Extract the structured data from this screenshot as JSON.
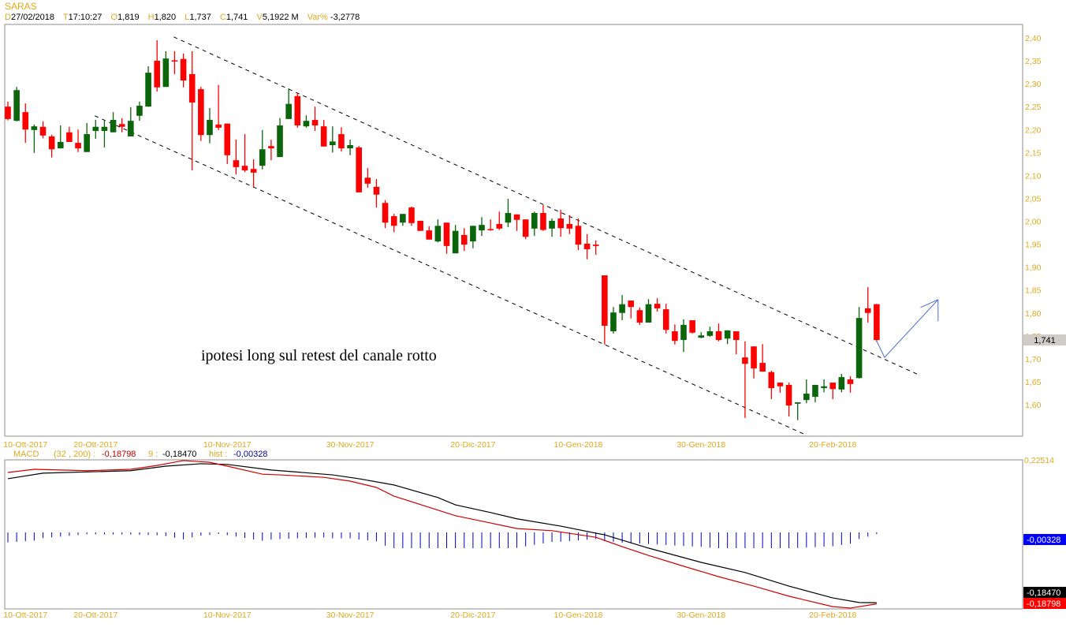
{
  "header": {
    "symbol": "SARAS",
    "fields": [
      {
        "key": "D",
        "value": "27/02/2018"
      },
      {
        "key": "T",
        "value": "17:10:27"
      },
      {
        "key": "O",
        "value": "1,819"
      },
      {
        "key": "H",
        "value": "1,820"
      },
      {
        "key": "L",
        "value": "1,737"
      },
      {
        "key": "C",
        "value": "1,741"
      },
      {
        "key": "V",
        "value": "5,1922 M"
      },
      {
        "key": "Var%",
        "value": "-3,2778"
      }
    ]
  },
  "chart_data": [
    {
      "type": "candlestick",
      "title": "SARAS",
      "ylim": [
        1.6,
        2.4
      ],
      "ytick_labels": [
        "2,40",
        "2,35",
        "2,30",
        "2,25",
        "2,20",
        "2,15",
        "2,10",
        "2,05",
        "2,00",
        "1,95",
        "1,90",
        "1,85",
        "1,80",
        "1,75",
        "1,70",
        "1,65",
        "1,60"
      ],
      "yticks": [
        2.4,
        2.35,
        2.3,
        2.25,
        2.2,
        2.15,
        2.1,
        2.05,
        2.0,
        1.95,
        1.9,
        1.85,
        1.8,
        1.75,
        1.7,
        1.65,
        1.6
      ],
      "last_price_label": "1,741",
      "last_price": 1.741,
      "xticks": [
        {
          "label": "10-Ott-2017",
          "index": 2
        },
        {
          "label": "20-Ott-2017",
          "index": 10
        },
        {
          "label": "10-Nov-2017",
          "index": 25
        },
        {
          "label": "30-Nov-2017",
          "index": 39
        },
        {
          "label": "20-Dic-2017",
          "index": 53
        },
        {
          "label": "10-Gen-2018",
          "index": 65
        },
        {
          "label": "30-Gen-2018",
          "index": 79
        },
        {
          "label": "20-Feb-2018",
          "index": 94
        }
      ],
      "ohlc_order": [
        "open",
        "high",
        "low",
        "close"
      ],
      "candles": [
        [
          2.25,
          2.261,
          2.22,
          2.223
        ],
        [
          2.219,
          2.293,
          2.218,
          2.286
        ],
        [
          2.238,
          2.257,
          2.171,
          2.2
        ],
        [
          2.199,
          2.211,
          2.149,
          2.207
        ],
        [
          2.206,
          2.218,
          2.181,
          2.187
        ],
        [
          2.185,
          2.189,
          2.139,
          2.157
        ],
        [
          2.159,
          2.209,
          2.159,
          2.173
        ],
        [
          2.194,
          2.206,
          2.173,
          2.173
        ],
        [
          2.171,
          2.2,
          2.151,
          2.159
        ],
        [
          2.151,
          2.214,
          2.151,
          2.19
        ],
        [
          2.197,
          2.221,
          2.18,
          2.206
        ],
        [
          2.197,
          2.221,
          2.161,
          2.206
        ],
        [
          2.194,
          2.238,
          2.194,
          2.221
        ],
        [
          2.212,
          2.225,
          2.194,
          2.206
        ],
        [
          2.185,
          2.249,
          2.185,
          2.219
        ],
        [
          2.23,
          2.261,
          2.219,
          2.252
        ],
        [
          2.25,
          2.338,
          2.25,
          2.324
        ],
        [
          2.35,
          2.395,
          2.283,
          2.292
        ],
        [
          2.293,
          2.371,
          2.293,
          2.355
        ],
        [
          2.351,
          2.371,
          2.321,
          2.349
        ],
        [
          2.354,
          2.366,
          2.292,
          2.307
        ],
        [
          2.321,
          2.371,
          2.111,
          2.259
        ],
        [
          2.288,
          2.293,
          2.175,
          2.188
        ],
        [
          2.188,
          2.247,
          2.17,
          2.221
        ],
        [
          2.211,
          2.297,
          2.199,
          2.204
        ],
        [
          2.213,
          2.213,
          2.125,
          2.144
        ],
        [
          2.133,
          2.178,
          2.102,
          2.118
        ],
        [
          2.121,
          2.19,
          2.107,
          2.111
        ],
        [
          2.114,
          2.135,
          2.073,
          2.106
        ],
        [
          2.121,
          2.199,
          2.113,
          2.157
        ],
        [
          2.164,
          2.178,
          2.133,
          2.159
        ],
        [
          2.14,
          2.225,
          2.14,
          2.209
        ],
        [
          2.223,
          2.29,
          2.223,
          2.256
        ],
        [
          2.273,
          2.28,
          2.204,
          2.209
        ],
        [
          2.207,
          2.231,
          2.204,
          2.219
        ],
        [
          2.221,
          2.25,
          2.197,
          2.209
        ],
        [
          2.207,
          2.221,
          2.163,
          2.163
        ],
        [
          2.166,
          2.207,
          2.15,
          2.174
        ],
        [
          2.19,
          2.205,
          2.152,
          2.159
        ],
        [
          2.159,
          2.178,
          2.144,
          2.166
        ],
        [
          2.161,
          2.164,
          2.063,
          2.063
        ],
        [
          2.095,
          2.116,
          2.073,
          2.082
        ],
        [
          2.075,
          2.092,
          2.03,
          2.058
        ],
        [
          2.04,
          2.046,
          1.985,
          1.997
        ],
        [
          2.011,
          2.016,
          1.976,
          1.99
        ],
        [
          1.997,
          2.016,
          1.99,
          2.016
        ],
        [
          2.03,
          2.032,
          1.99,
          1.996
        ],
        [
          2.001,
          2.001,
          1.979,
          1.979
        ],
        [
          1.98,
          1.989,
          1.96,
          1.96
        ],
        [
          1.956,
          2.004,
          1.954,
          1.99
        ],
        [
          1.997,
          1.997,
          1.929,
          1.946
        ],
        [
          1.93,
          1.992,
          1.93,
          1.979
        ],
        [
          1.97,
          1.985,
          1.935,
          1.949
        ],
        [
          1.956,
          1.99,
          1.941,
          1.99
        ],
        [
          1.98,
          2.009,
          1.968,
          1.992
        ],
        [
          1.983,
          2.004,
          1.979,
          1.981
        ],
        [
          1.994,
          2.021,
          1.981,
          1.984
        ],
        [
          1.997,
          2.049,
          1.987,
          2.018
        ],
        [
          2.015,
          2.015,
          1.979,
          2.003
        ],
        [
          2.004,
          2.004,
          1.961,
          1.966
        ],
        [
          1.984,
          2.021,
          1.968,
          2.018
        ],
        [
          2.018,
          2.035,
          1.979,
          1.981
        ],
        [
          1.984,
          2.006,
          1.966,
          2.001
        ],
        [
          2.006,
          2.025,
          1.966,
          1.985
        ],
        [
          1.994,
          2.013,
          1.972,
          1.984
        ],
        [
          1.99,
          2.006,
          1.937,
          1.949
        ],
        [
          1.951,
          1.972,
          1.917,
          1.939
        ],
        [
          1.949,
          1.958,
          1.927,
          1.946
        ],
        [
          1.882,
          1.882,
          1.731,
          1.772
        ],
        [
          1.76,
          1.813,
          1.755,
          1.801
        ],
        [
          1.8,
          1.839,
          1.784,
          1.819
        ],
        [
          1.827,
          1.827,
          1.788,
          1.813
        ],
        [
          1.806,
          1.812,
          1.774,
          1.779
        ],
        [
          1.779,
          1.83,
          1.779,
          1.819
        ],
        [
          1.82,
          1.832,
          1.803,
          1.81
        ],
        [
          1.808,
          1.82,
          1.755,
          1.763
        ],
        [
          1.76,
          1.775,
          1.731,
          1.739
        ],
        [
          1.741,
          1.786,
          1.715,
          1.774
        ],
        [
          1.784,
          1.784,
          1.755,
          1.757
        ],
        [
          1.746,
          1.758,
          1.745,
          1.751
        ],
        [
          1.75,
          1.77,
          1.748,
          1.76
        ],
        [
          1.76,
          1.777,
          1.738,
          1.741
        ],
        [
          1.744,
          1.762,
          1.732,
          1.762
        ],
        [
          1.76,
          1.76,
          1.71,
          1.741
        ],
        [
          1.703,
          1.738,
          1.571,
          1.689
        ],
        [
          1.727,
          1.727,
          1.657,
          1.679
        ],
        [
          1.691,
          1.732,
          1.672,
          1.672
        ],
        [
          1.671,
          1.674,
          1.612,
          1.636
        ],
        [
          1.648,
          1.648,
          1.626,
          1.64
        ],
        [
          1.643,
          1.648,
          1.574,
          1.598
        ],
        [
          1.602,
          1.605,
          1.566,
          1.605
        ],
        [
          1.61,
          1.655,
          1.603,
          1.624
        ],
        [
          1.617,
          1.643,
          1.605,
          1.643
        ],
        [
          1.636,
          1.655,
          1.627,
          1.64
        ],
        [
          1.648,
          1.648,
          1.612,
          1.634
        ],
        [
          1.633,
          1.667,
          1.627,
          1.66
        ],
        [
          1.655,
          1.662,
          1.626,
          1.645
        ],
        [
          1.658,
          1.813,
          1.657,
          1.789
        ],
        [
          1.81,
          1.856,
          1.779,
          1.8
        ],
        [
          1.819,
          1.82,
          1.737,
          1.741
        ]
      ],
      "colors": {
        "up": "#0b650b",
        "down": "#ff0000"
      },
      "trendlines": [
        {
          "name": "upper-channel",
          "from": [
            18.9,
            2.402
          ],
          "to": [
            103.8,
            1.665
          ],
          "style": "dashed"
        },
        {
          "name": "lower-channel",
          "from": [
            9.9,
            2.23
          ],
          "to": [
            90.7,
            1.536
          ],
          "style": "dashed"
        }
      ],
      "projection_arrow": {
        "color": "#4a6fd6",
        "points": [
          [
            99,
            1.739
          ],
          [
            99.9,
            1.703
          ],
          [
            106,
            1.829
          ]
        ],
        "head": [
          [
            106,
            1.782
          ],
          [
            104,
            1.812
          ]
        ]
      },
      "annotation": "ipotesi long sul retest del canale rotto"
    },
    {
      "type": "line",
      "title": "MACD",
      "params_label": "(32 , 200) :",
      "macd_label": "-0,18798",
      "signal_period_label": "9 :",
      "signal_label": "-0,18470",
      "hist_label_key": "hist :",
      "hist_label": "-0,00328",
      "axis_top_label": "0,22514",
      "axis_top": 0.22514,
      "colors": {
        "macd": "#d00000",
        "signal": "#000000",
        "hist": "#0000cc"
      },
      "xticks": [
        {
          "label": "10-Ott-2017",
          "index": 2
        },
        {
          "label": "20-Ott-2017",
          "index": 10
        },
        {
          "label": "10-Nov-2017",
          "index": 25
        },
        {
          "label": "30-Nov-2017",
          "index": 39
        },
        {
          "label": "20-Dic-2017",
          "index": 53
        },
        {
          "label": "10-Gen-2018",
          "index": 65
        },
        {
          "label": "30-Gen-2018",
          "index": 79
        },
        {
          "label": "20-Feb-2018",
          "index": 94
        }
      ],
      "series": [
        {
          "name": "MACD (32 , 200)",
          "points": [
            [
              0,
              0.189
            ],
            [
              3,
              0.198
            ],
            [
              9,
              0.194
            ],
            [
              14,
              0.198
            ],
            [
              17,
              0.209
            ],
            [
              20,
              0.223
            ],
            [
              23,
              0.218
            ],
            [
              25,
              0.207
            ],
            [
              29,
              0.184
            ],
            [
              31,
              0.182
            ],
            [
              36,
              0.175
            ],
            [
              39,
              0.164
            ],
            [
              42,
              0.146
            ],
            [
              44,
              0.121
            ],
            [
              48,
              0.089
            ],
            [
              51,
              0.065
            ],
            [
              55,
              0.044
            ],
            [
              58,
              0.028
            ],
            [
              62,
              0.022
            ],
            [
              67,
              0.003
            ],
            [
              70,
              -0.024
            ],
            [
              73,
              -0.049
            ],
            [
              77,
              -0.08
            ],
            [
              81,
              -0.11
            ],
            [
              85,
              -0.137
            ],
            [
              89,
              -0.166
            ],
            [
              94,
              -0.196
            ],
            [
              96,
              -0.2
            ],
            [
              99,
              -0.18798
            ]
          ]
        },
        {
          "name": "9",
          "points": [
            [
              0,
              0.171
            ],
            [
              4,
              0.187
            ],
            [
              14,
              0.194
            ],
            [
              18,
              0.207
            ],
            [
              22,
              0.214
            ],
            [
              25,
              0.212
            ],
            [
              30,
              0.196
            ],
            [
              37,
              0.182
            ],
            [
              40,
              0.171
            ],
            [
              44,
              0.153
            ],
            [
              49,
              0.117
            ],
            [
              51,
              0.096
            ],
            [
              55,
              0.074
            ],
            [
              58,
              0.056
            ],
            [
              63,
              0.035
            ],
            [
              68,
              0.01
            ],
            [
              73,
              -0.028
            ],
            [
              79,
              -0.069
            ],
            [
              84,
              -0.098
            ],
            [
              89,
              -0.137
            ],
            [
              94,
              -0.171
            ],
            [
              97,
              -0.184
            ],
            [
              99,
              -0.1847
            ]
          ]
        }
      ]
    }
  ]
}
